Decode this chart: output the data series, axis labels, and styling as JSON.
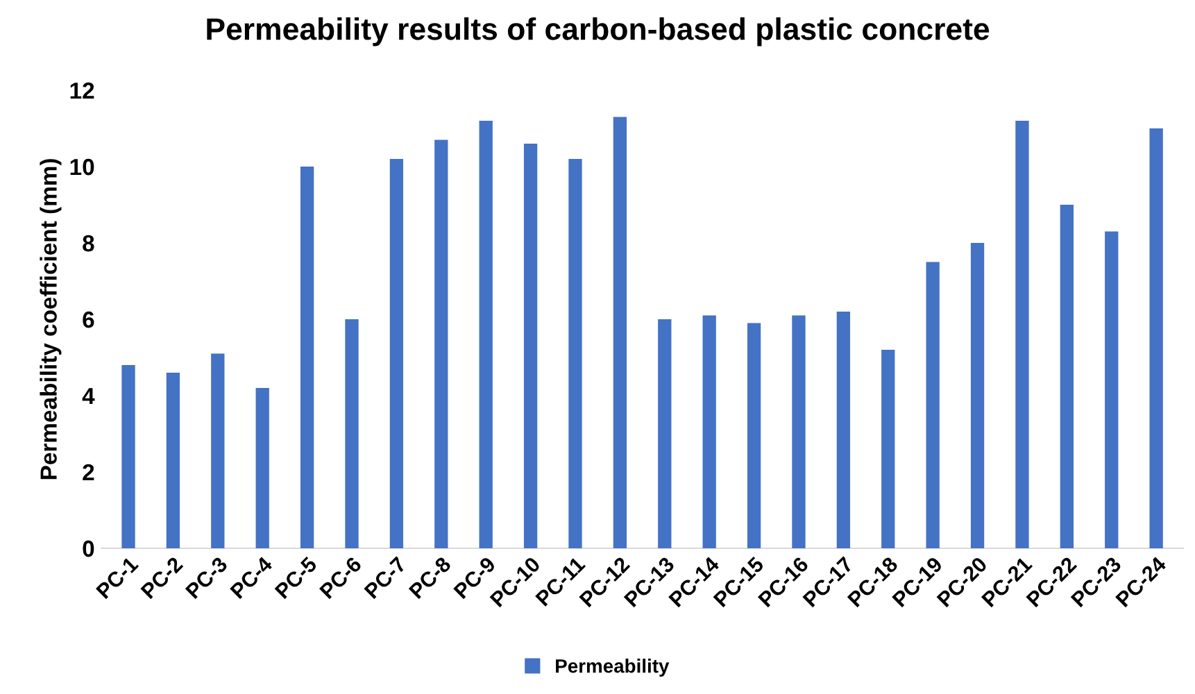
{
  "chart_data": {
    "type": "bar",
    "title": "Permeability results of carbon-based plastic concrete",
    "ylabel": "Permeability coefficient (mm)",
    "categories": [
      "PC-1",
      "PC-2",
      "PC-3",
      "PC-4",
      "PC-5",
      "PC-6",
      "PC-7",
      "PC-8",
      "PC-9",
      "PC-10",
      "PC-11",
      "PC-12",
      "PC-13",
      "PC-14",
      "PC-15",
      "PC-16",
      "PC-17",
      "PC-18",
      "PC-19",
      "PC-20",
      "PC-21",
      "PC-22",
      "PC-23",
      "PC-24"
    ],
    "series": [
      {
        "name": "Permeability",
        "color": "#4472c4",
        "values": [
          4.8,
          4.6,
          5.1,
          4.2,
          10.0,
          6.0,
          10.2,
          10.7,
          11.2,
          10.6,
          10.2,
          11.3,
          6.0,
          6.1,
          5.9,
          6.1,
          6.2,
          5.2,
          7.5,
          8.0,
          11.2,
          9.0,
          8.3,
          11.0
        ]
      }
    ],
    "ylim": [
      0,
      12
    ],
    "yticks": [
      0,
      2,
      4,
      6,
      8,
      10,
      12
    ],
    "grid": false,
    "legend": "bottom"
  }
}
